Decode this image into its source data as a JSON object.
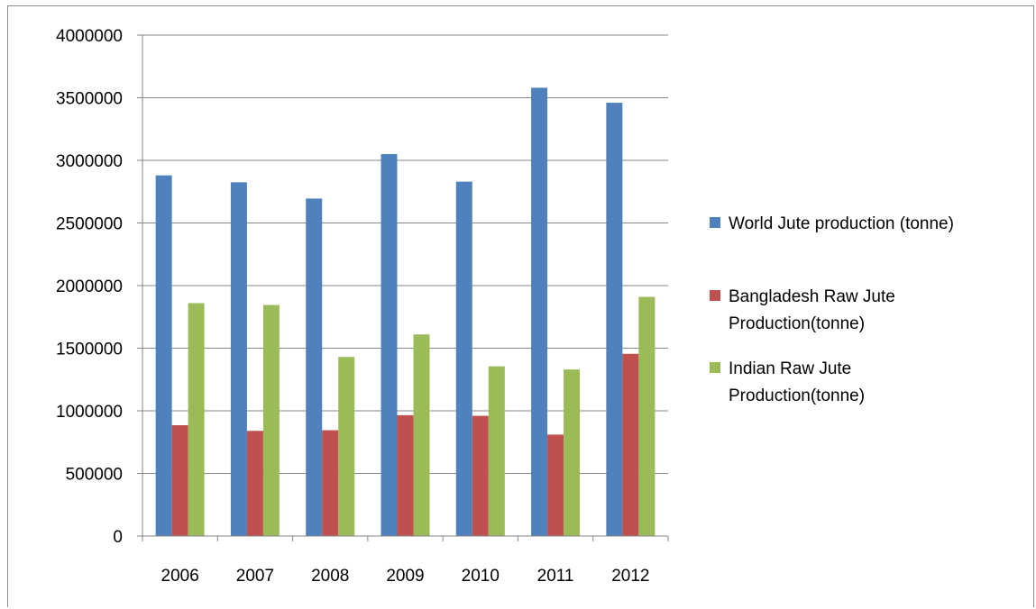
{
  "chart_data": {
    "type": "bar",
    "title": "",
    "xlabel": "",
    "ylabel": "",
    "categories": [
      "2006",
      "2007",
      "2008",
      "2009",
      "2010",
      "2011",
      "2012"
    ],
    "ylim": [
      0,
      4000000
    ],
    "yticks": [
      0,
      500000,
      1000000,
      1500000,
      2000000,
      2500000,
      3000000,
      3500000,
      4000000
    ],
    "ytick_labels": [
      "0",
      "500000",
      "1000000",
      "1500000",
      "2000000",
      "2500000",
      "3000000",
      "3500000",
      "4000000"
    ],
    "grid": true,
    "legend_position": "right",
    "series": [
      {
        "name": "World Jute production (tonne)",
        "legend_lines": [
          "World Jute production (tonne)"
        ],
        "color": "#4f81bd",
        "values": [
          2880000,
          2825000,
          2695000,
          3050000,
          2830000,
          3580000,
          3460000
        ]
      },
      {
        "name": "Bangladesh Raw Jute Production(tonne)",
        "legend_lines": [
          "Bangladesh Raw Jute",
          "Production(tonne)"
        ],
        "color": "#c0504d",
        "values": [
          885000,
          840000,
          845000,
          965000,
          960000,
          810000,
          1455000
        ]
      },
      {
        "name": "Indian Raw Jute Production(tonne)",
        "legend_lines": [
          "Indian Raw Jute",
          "Production(tonne)"
        ],
        "color": "#9bbb59",
        "values": [
          1860000,
          1845000,
          1430000,
          1610000,
          1355000,
          1330000,
          1910000
        ]
      }
    ]
  }
}
